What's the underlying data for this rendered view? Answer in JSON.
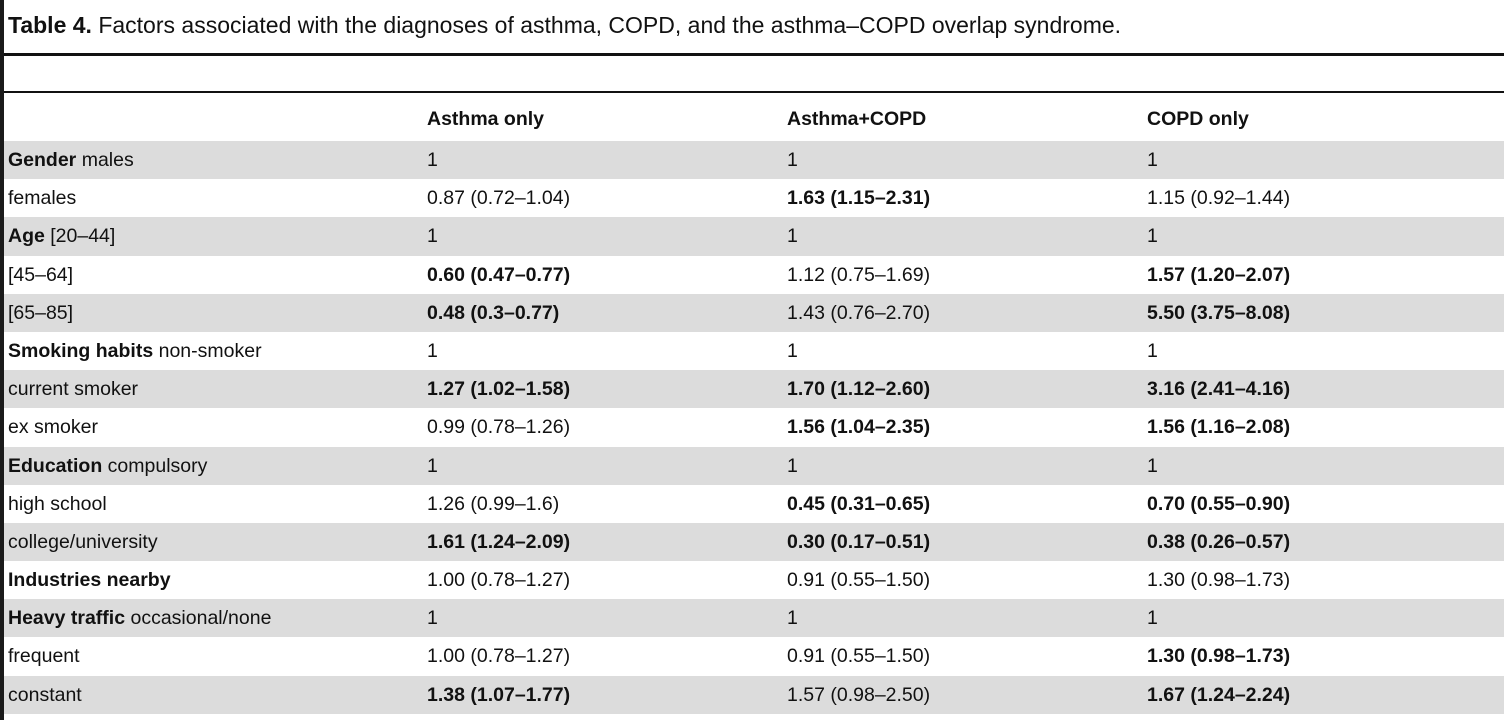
{
  "caption": {
    "label": "Table 4.",
    "text": " Factors associated with the diagnoses of asthma, COPD, and the asthma–COPD overlap syndrome."
  },
  "table": {
    "columns": [
      "",
      "Asthma only",
      "Asthma+COPD",
      "COPD only"
    ],
    "rows": [
      {
        "group": "Gender",
        "sub": " males",
        "shaded": true,
        "cells": [
          {
            "v": "1",
            "b": false
          },
          {
            "v": "1",
            "b": false
          },
          {
            "v": "1",
            "b": false
          }
        ]
      },
      {
        "group": "",
        "sub": "females",
        "shaded": false,
        "cells": [
          {
            "v": "0.87 (0.72–1.04)",
            "b": false
          },
          {
            "v": "1.63 (1.15–2.31)",
            "b": true
          },
          {
            "v": "1.15 (0.92–1.44)",
            "b": false
          }
        ]
      },
      {
        "group": "Age",
        "sub": " [20–44]",
        "shaded": true,
        "cells": [
          {
            "v": "1",
            "b": false
          },
          {
            "v": "1",
            "b": false
          },
          {
            "v": "1",
            "b": false
          }
        ]
      },
      {
        "group": "",
        "sub": "[45–64]",
        "shaded": false,
        "cells": [
          {
            "v": "0.60 (0.47–0.77)",
            "b": true
          },
          {
            "v": "1.12 (0.75–1.69)",
            "b": false
          },
          {
            "v": "1.57 (1.20–2.07)",
            "b": true
          }
        ]
      },
      {
        "group": "",
        "sub": "[65–85]",
        "shaded": true,
        "cells": [
          {
            "v": "0.48 (0.3–0.77)",
            "b": true
          },
          {
            "v": "1.43 (0.76–2.70)",
            "b": false
          },
          {
            "v": "5.50 (3.75–8.08)",
            "b": true
          }
        ]
      },
      {
        "group": "Smoking habits",
        "sub": " non-smoker",
        "shaded": false,
        "cells": [
          {
            "v": "1",
            "b": false
          },
          {
            "v": "1",
            "b": false
          },
          {
            "v": "1",
            "b": false
          }
        ]
      },
      {
        "group": "",
        "sub": "current smoker",
        "shaded": true,
        "cells": [
          {
            "v": "1.27 (1.02–1.58)",
            "b": true
          },
          {
            "v": "1.70 (1.12–2.60)",
            "b": true
          },
          {
            "v": "3.16 (2.41–4.16)",
            "b": true
          }
        ]
      },
      {
        "group": "",
        "sub": "ex smoker",
        "shaded": false,
        "cells": [
          {
            "v": "0.99 (0.78–1.26)",
            "b": false
          },
          {
            "v": "1.56 (1.04–2.35)",
            "b": true
          },
          {
            "v": "1.56 (1.16–2.08)",
            "b": true
          }
        ]
      },
      {
        "group": "Education",
        "sub": " compulsory",
        "shaded": true,
        "cells": [
          {
            "v": "1",
            "b": false
          },
          {
            "v": "1",
            "b": false
          },
          {
            "v": "1",
            "b": false
          }
        ]
      },
      {
        "group": "",
        "sub": "high school",
        "shaded": false,
        "cells": [
          {
            "v": "1.26 (0.99–1.6)",
            "b": false
          },
          {
            "v": "0.45 (0.31–0.65)",
            "b": true
          },
          {
            "v": "0.70 (0.55–0.90)",
            "b": true
          }
        ]
      },
      {
        "group": "",
        "sub": "college/university",
        "shaded": true,
        "cells": [
          {
            "v": "1.61 (1.24–2.09)",
            "b": true
          },
          {
            "v": "0.30 (0.17–0.51)",
            "b": true
          },
          {
            "v": "0.38 (0.26–0.57)",
            "b": true
          }
        ]
      },
      {
        "group": "Industries nearby",
        "sub": "",
        "shaded": false,
        "cells": [
          {
            "v": "1.00 (0.78–1.27)",
            "b": false
          },
          {
            "v": "0.91 (0.55–1.50)",
            "b": false
          },
          {
            "v": "1.30 (0.98–1.73)",
            "b": false
          }
        ]
      },
      {
        "group": "Heavy traffic",
        "sub": " occasional/none",
        "shaded": true,
        "cells": [
          {
            "v": "1",
            "b": false
          },
          {
            "v": "1",
            "b": false
          },
          {
            "v": "1",
            "b": false
          }
        ]
      },
      {
        "group": "",
        "sub": "frequent",
        "shaded": false,
        "cells": [
          {
            "v": "1.00 (0.78–1.27)",
            "b": false
          },
          {
            "v": "0.91 (0.55–1.50)",
            "b": false
          },
          {
            "v": "1.30 (0.98–1.73)",
            "b": true
          }
        ]
      },
      {
        "group": "",
        "sub": "constant",
        "shaded": true,
        "cells": [
          {
            "v": "1.38 (1.07–1.77)",
            "b": true
          },
          {
            "v": "1.57 (0.98–2.50)",
            "b": false
          },
          {
            "v": "1.67 (1.24–2.24)",
            "b": true
          }
        ]
      }
    ]
  }
}
